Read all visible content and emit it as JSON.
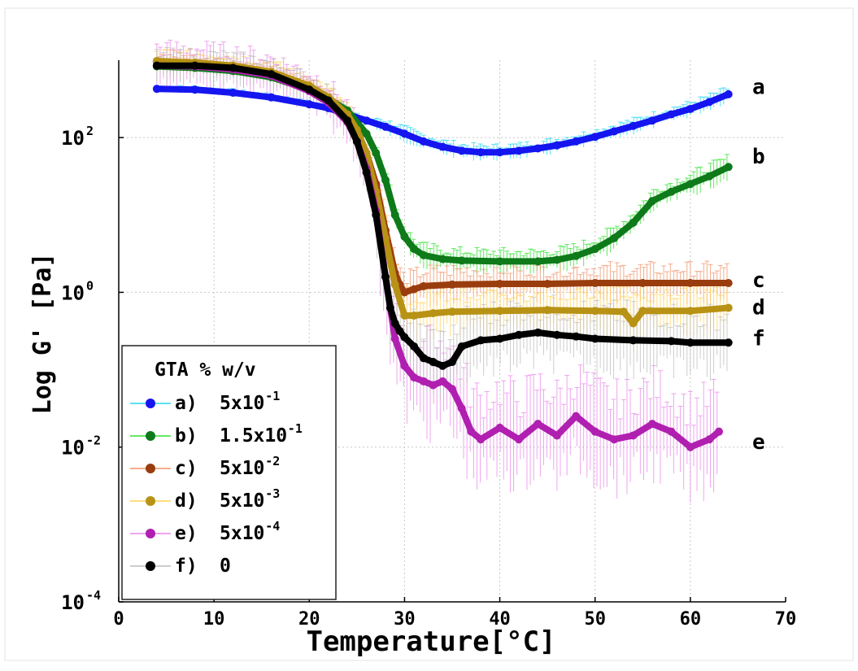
{
  "chart_data": {
    "type": "line",
    "title": "",
    "xlabel": "Temperature[°C]",
    "ylabel": "Log G' [Pa]",
    "xlim": [
      0,
      70
    ],
    "ylim_exponent": [
      -4,
      3
    ],
    "y_scale": "log",
    "grid": true,
    "x_ticks": [
      {
        "v": 0,
        "label": "0"
      },
      {
        "v": 10,
        "label": "10"
      },
      {
        "v": 20,
        "label": "20"
      },
      {
        "v": 30,
        "label": "30"
      },
      {
        "v": 40,
        "label": "40"
      },
      {
        "v": 50,
        "label": "50"
      },
      {
        "v": 60,
        "label": "60"
      },
      {
        "v": 70,
        "label": "70"
      }
    ],
    "y_ticks": [
      {
        "v": -4,
        "base": "10",
        "exp": "-4"
      },
      {
        "v": -2,
        "base": "10",
        "exp": "-2"
      },
      {
        "v": 0,
        "base": "10",
        "exp": "0"
      },
      {
        "v": 2,
        "base": "10",
        "exp": "2"
      }
    ],
    "legend": {
      "title": "GTA % w/v",
      "placement": "bottom-left",
      "entries": [
        {
          "prefix": "a)",
          "text": "5x10",
          "exp": "-1"
        },
        {
          "prefix": "b)",
          "text": "1.5x10",
          "exp": "-1"
        },
        {
          "prefix": "c)",
          "text": "5x10",
          "exp": "-2"
        },
        {
          "prefix": "d)",
          "text": "5x10",
          "exp": "-3"
        },
        {
          "prefix": "e)",
          "text": "5x10",
          "exp": "-4"
        },
        {
          "prefix": "f)",
          "text": "0",
          "exp": ""
        }
      ]
    },
    "series": [
      {
        "name": "a",
        "color": "#1515f0",
        "error_color": "#27d7f0",
        "error_spread": 0.09,
        "x": [
          4,
          8,
          12,
          16,
          20,
          22,
          24,
          26,
          28,
          30,
          32,
          34,
          36,
          38,
          40,
          42,
          44,
          46,
          48,
          50,
          52,
          54,
          56,
          58,
          60,
          62,
          64
        ],
        "log_y": [
          2.63,
          2.62,
          2.58,
          2.52,
          2.43,
          2.38,
          2.3,
          2.22,
          2.14,
          2.05,
          1.95,
          1.88,
          1.83,
          1.81,
          1.81,
          1.83,
          1.86,
          1.9,
          1.95,
          2.01,
          2.08,
          2.15,
          2.22,
          2.3,
          2.37,
          2.46,
          2.56
        ]
      },
      {
        "name": "b",
        "color": "#0e7a1a",
        "error_color": "#33e033",
        "error_spread": 0.14,
        "x": [
          4,
          8,
          12,
          16,
          20,
          22,
          24,
          26,
          27,
          28,
          29,
          30,
          31,
          32,
          34,
          36,
          40,
          44,
          46,
          48,
          50,
          52,
          54,
          56,
          58,
          60,
          62,
          64
        ],
        "log_y": [
          2.92,
          2.9,
          2.86,
          2.78,
          2.62,
          2.5,
          2.35,
          2.05,
          1.8,
          1.45,
          1.0,
          0.72,
          0.56,
          0.48,
          0.43,
          0.41,
          0.4,
          0.4,
          0.42,
          0.47,
          0.56,
          0.7,
          0.9,
          1.18,
          1.3,
          1.4,
          1.5,
          1.62
        ]
      },
      {
        "name": "c",
        "color": "#9a3d0e",
        "error_color": "#f0946a",
        "error_spread": 0.22,
        "x": [
          4,
          8,
          12,
          16,
          20,
          22,
          24,
          25,
          26,
          27,
          28,
          29,
          29.5,
          30,
          31,
          32,
          35,
          40,
          45,
          50,
          55,
          60,
          64
        ],
        "log_y": [
          2.98,
          2.96,
          2.92,
          2.84,
          2.66,
          2.52,
          2.3,
          2.1,
          1.8,
          1.4,
          0.8,
          0.25,
          0.1,
          0.0,
          0.04,
          0.08,
          0.1,
          0.11,
          0.11,
          0.12,
          0.12,
          0.12,
          0.12
        ]
      },
      {
        "name": "d",
        "color": "#b89214",
        "error_color": "#ffd256",
        "error_spread": 0.3,
        "x": [
          4,
          8,
          12,
          16,
          20,
          22,
          24,
          25,
          26,
          27,
          28,
          29,
          30,
          31,
          33,
          35,
          40,
          45,
          50,
          53,
          54,
          55,
          60,
          64
        ],
        "log_y": [
          2.99,
          2.97,
          2.93,
          2.85,
          2.67,
          2.52,
          2.3,
          2.1,
          1.8,
          1.3,
          0.7,
          0.1,
          -0.3,
          -0.3,
          -0.27,
          -0.25,
          -0.24,
          -0.23,
          -0.24,
          -0.25,
          -0.4,
          -0.24,
          -0.24,
          -0.2
        ]
      },
      {
        "name": "e",
        "color": "#b01fb0",
        "error_color": "#e889e8",
        "error_spread": 0.6,
        "x": [
          4,
          8,
          12,
          16,
          20,
          22,
          24,
          25,
          26,
          27,
          28,
          29,
          30,
          31,
          32,
          33,
          34,
          35,
          36,
          37,
          38,
          40,
          42,
          44,
          46,
          48,
          50,
          52,
          54,
          56,
          58,
          60,
          62,
          63
        ],
        "log_y": [
          2.93,
          2.92,
          2.88,
          2.8,
          2.6,
          2.45,
          2.2,
          1.95,
          1.6,
          1.05,
          0.2,
          -0.6,
          -0.95,
          -1.1,
          -1.15,
          -1.2,
          -1.15,
          -1.25,
          -1.5,
          -1.8,
          -1.9,
          -1.75,
          -1.9,
          -1.7,
          -1.85,
          -1.6,
          -1.8,
          -1.9,
          -1.85,
          -1.7,
          -1.8,
          -2.0,
          -1.9,
          -1.8
        ]
      },
      {
        "name": "f",
        "color": "#000000",
        "error_color": "#bdbdbd",
        "error_spread": 0.4,
        "x": [
          4,
          8,
          12,
          16,
          20,
          22,
          24,
          25,
          26,
          27,
          28,
          28.5,
          29,
          29.5,
          30,
          31,
          32,
          33,
          34,
          35,
          36,
          38,
          40,
          42,
          44,
          46,
          48,
          50,
          54,
          58,
          60,
          64
        ],
        "log_y": [
          2.93,
          2.93,
          2.9,
          2.82,
          2.62,
          2.48,
          2.22,
          1.95,
          1.55,
          1.0,
          0.2,
          -0.2,
          -0.4,
          -0.5,
          -0.58,
          -0.7,
          -0.85,
          -0.9,
          -0.95,
          -0.9,
          -0.7,
          -0.62,
          -0.6,
          -0.55,
          -0.52,
          -0.55,
          -0.57,
          -0.6,
          -0.62,
          -0.63,
          -0.65,
          -0.65
        ]
      }
    ],
    "annotations": [
      {
        "text": "a",
        "x": 66.5,
        "log_y": 2.65
      },
      {
        "text": "b",
        "x": 66.5,
        "log_y": 1.75
      },
      {
        "text": "c",
        "x": 66.5,
        "log_y": 0.15
      },
      {
        "text": "d",
        "x": 66.5,
        "log_y": -0.2
      },
      {
        "text": "f",
        "x": 66.5,
        "log_y": -0.6
      },
      {
        "text": "e",
        "x": 66.5,
        "log_y": -1.94
      }
    ]
  }
}
